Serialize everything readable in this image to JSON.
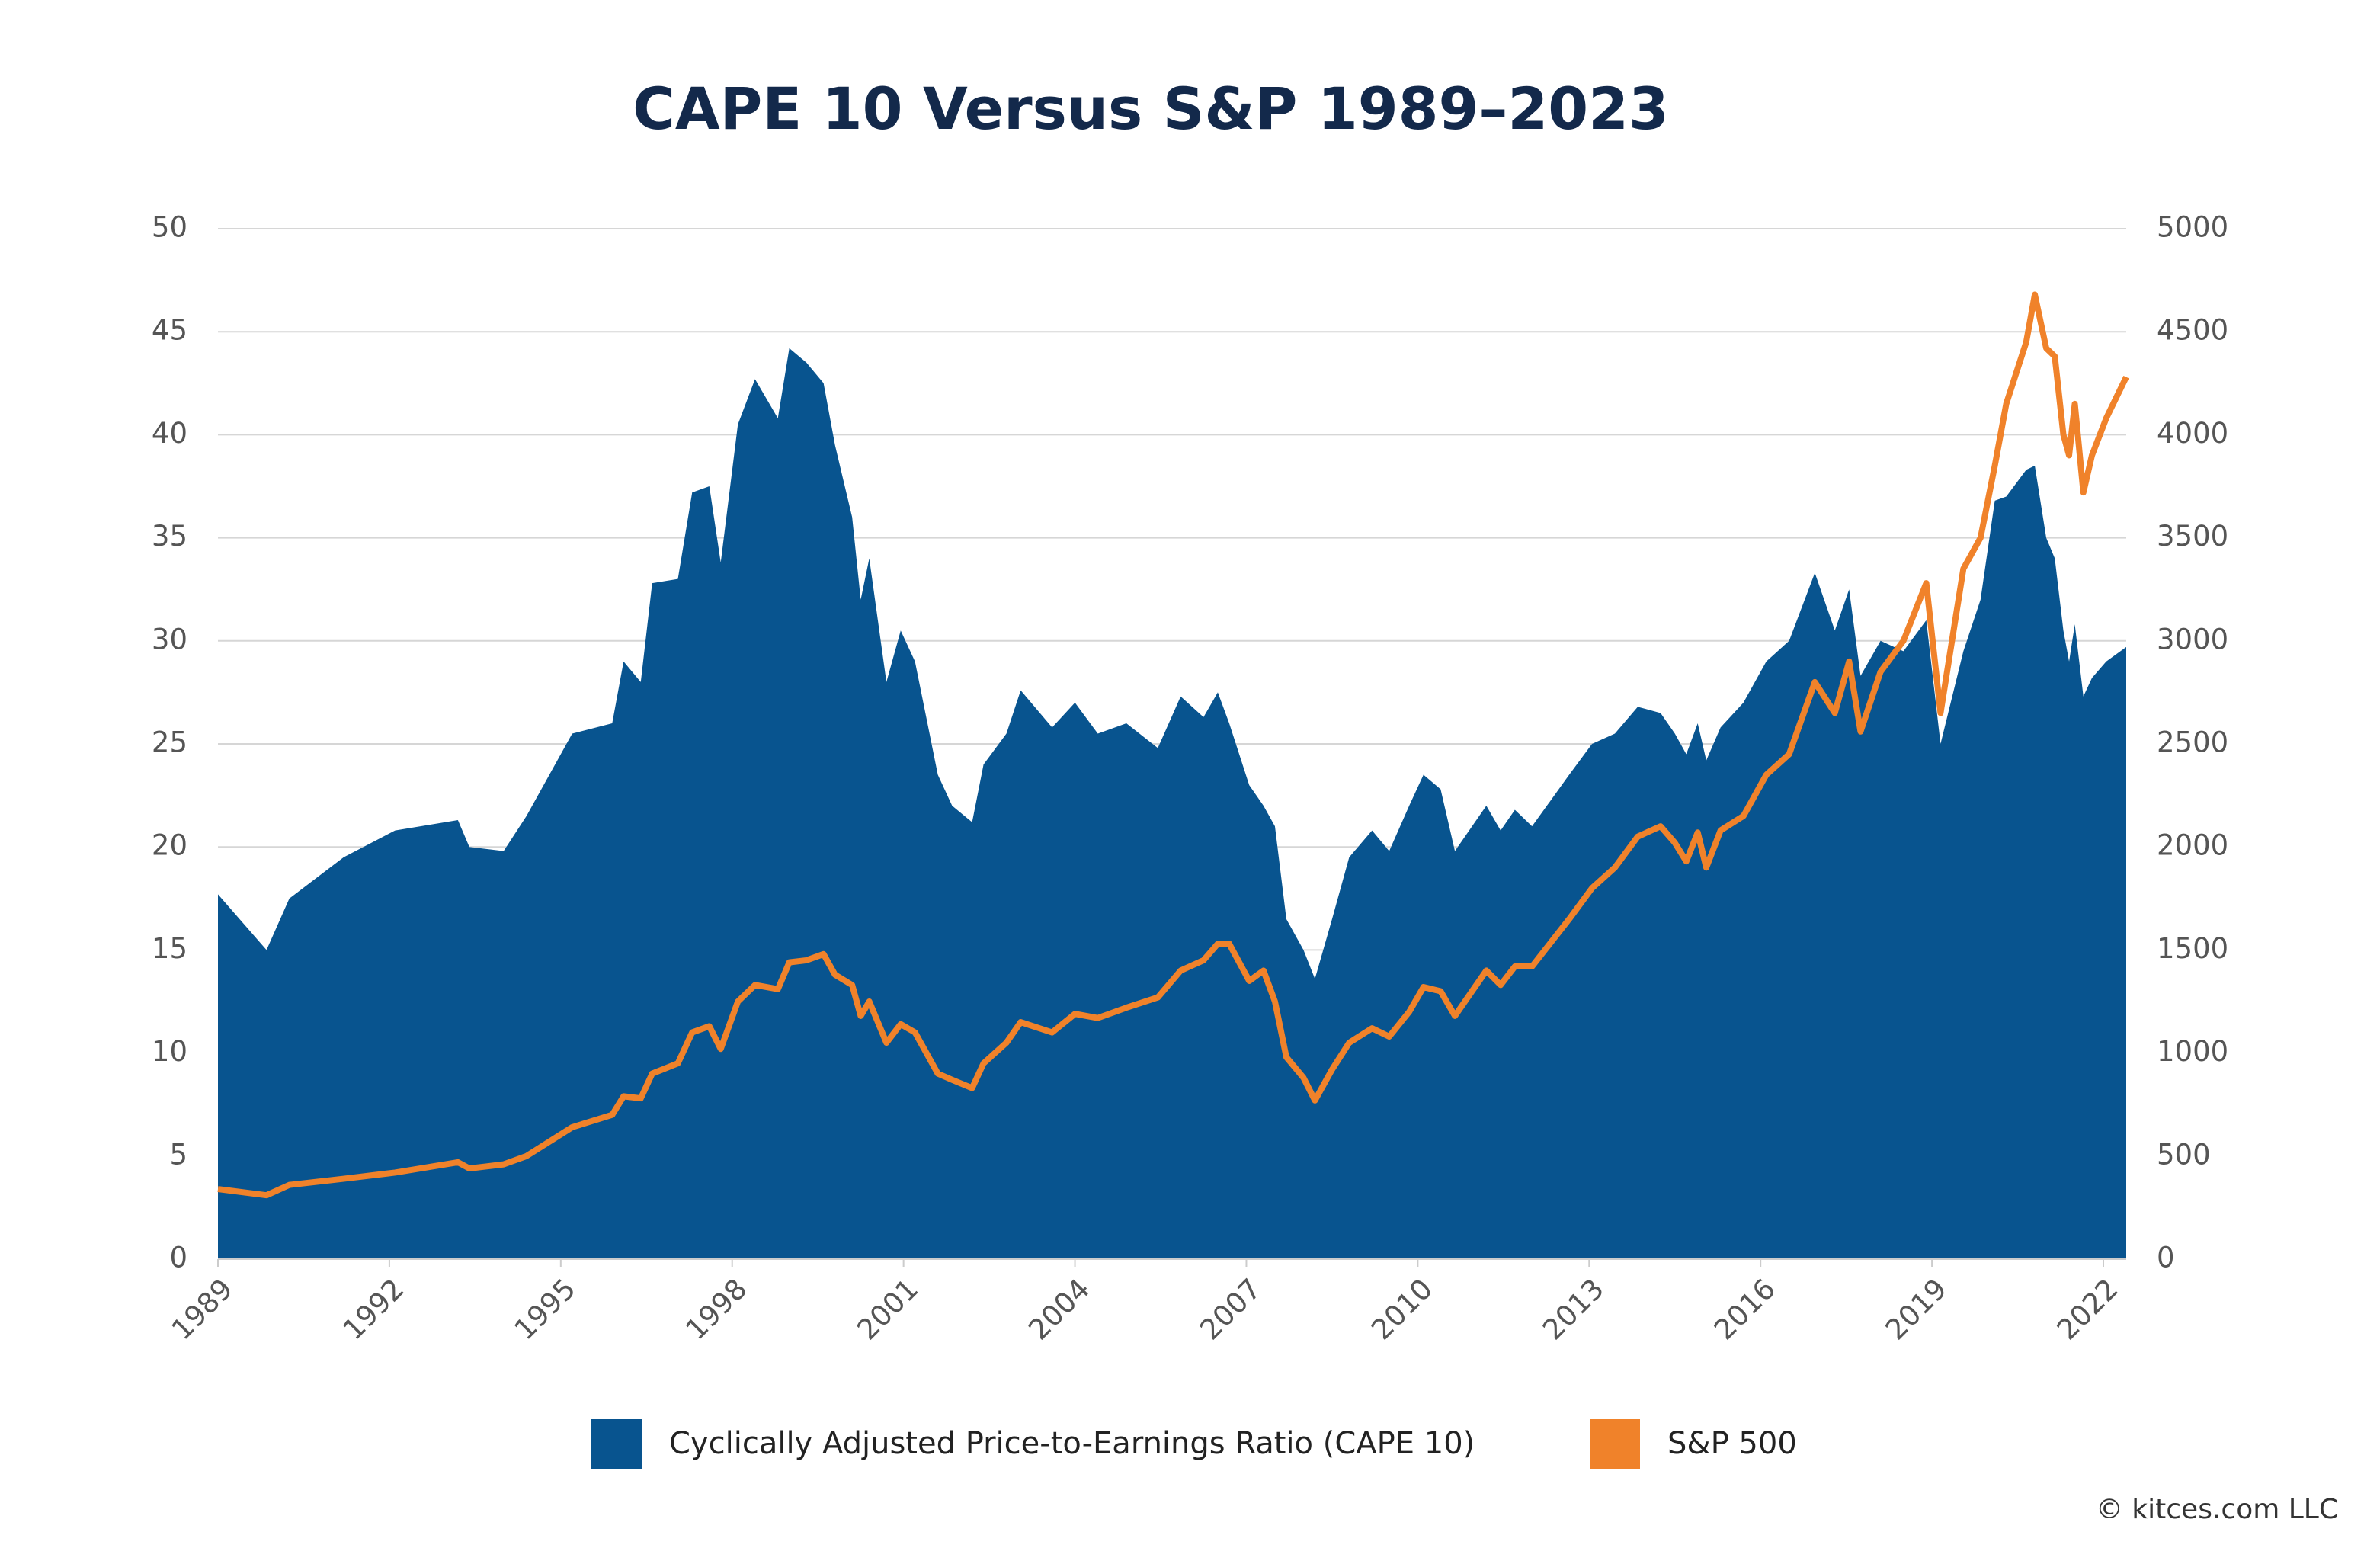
{
  "chart_data": {
    "type": "area",
    "title": "CAPE 10 Versus S&P 1989–2023",
    "credit": "© kitces.com LLC",
    "x": [
      1989.0,
      1989.85,
      1990.25,
      1991.2,
      1992.1,
      1993.2,
      1993.4,
      1994.0,
      1994.4,
      1995.2,
      1995.9,
      1996.1,
      1996.4,
      1996.6,
      1997.05,
      1997.3,
      1997.6,
      1997.8,
      1998.1,
      1998.4,
      1998.8,
      1999.0,
      1999.3,
      1999.6,
      1999.8,
      2000.1,
      2000.25,
      2000.4,
      2000.7,
      2000.95,
      2001.2,
      2001.6,
      2001.85,
      2002.2,
      2002.4,
      2002.8,
      2003.05,
      2003.6,
      2004.0,
      2004.4,
      2004.9,
      2005.45,
      2005.85,
      2006.25,
      2006.5,
      2006.7,
      2007.05,
      2007.3,
      2007.5,
      2007.7,
      2008.0,
      2008.2,
      2008.5,
      2008.8,
      2009.2,
      2009.5,
      2009.85,
      2010.1,
      2010.4,
      2010.65,
      2011.2,
      2011.45,
      2011.7,
      2012.0,
      2012.65,
      2013.05,
      2013.45,
      2013.85,
      2014.25,
      2014.5,
      2014.7,
      2014.9,
      2015.05,
      2015.3,
      2015.7,
      2016.1,
      2016.5,
      2016.95,
      2017.3,
      2017.55,
      2017.75,
      2018.1,
      2018.5,
      2018.9,
      2019.15,
      2019.55,
      2019.85,
      2020.1,
      2020.3,
      2020.65,
      2020.8,
      2021.0,
      2021.15,
      2021.3,
      2021.4,
      2021.5,
      2021.65,
      2021.8,
      2022.05,
      2022.4
    ],
    "series": [
      {
        "name": "Cyclically Adjusted Price-to-Earnings Ratio (CAPE 10)",
        "type": "area",
        "color": "#08548f",
        "values": [
          17.7,
          15.0,
          17.5,
          19.5,
          20.8,
          21.3,
          20.0,
          19.8,
          21.5,
          25.5,
          26.0,
          29.0,
          28.0,
          32.8,
          33.0,
          37.2,
          37.5,
          33.8,
          40.5,
          42.7,
          40.8,
          44.2,
          43.5,
          42.5,
          39.5,
          36.0,
          32.0,
          34.0,
          28.0,
          30.5,
          29.0,
          23.5,
          22.0,
          21.2,
          24.0,
          25.5,
          27.6,
          25.8,
          27.0,
          25.5,
          26.0,
          24.8,
          27.3,
          26.3,
          27.5,
          26.0,
          23.0,
          22.0,
          21.0,
          16.5,
          15.0,
          13.6,
          16.5,
          19.5,
          20.8,
          19.8,
          22.0,
          23.5,
          22.8,
          19.8,
          22.0,
          20.8,
          21.8,
          21.0,
          23.5,
          25.0,
          25.5,
          26.8,
          26.5,
          25.5,
          24.5,
          26.0,
          24.2,
          25.8,
          27.0,
          29.0,
          30.0,
          33.3,
          30.5,
          32.5,
          28.3,
          30.0,
          29.5,
          31.0,
          25.0,
          29.5,
          32.0,
          36.8,
          37.0,
          38.3,
          38.5,
          35.0,
          34.0,
          30.5,
          29.0,
          30.8,
          27.3,
          28.2,
          29.0,
          29.7
        ]
      },
      {
        "name": "S&P 500",
        "type": "line",
        "axis": "y2",
        "color": "#f0822a",
        "values": [
          340,
          310,
          360,
          390,
          420,
          470,
          440,
          460,
          500,
          640,
          700,
          790,
          780,
          900,
          950,
          1100,
          1130,
          1020,
          1250,
          1330,
          1310,
          1440,
          1450,
          1480,
          1380,
          1330,
          1180,
          1250,
          1050,
          1140,
          1100,
          900,
          870,
          830,
          950,
          1050,
          1150,
          1100,
          1190,
          1170,
          1220,
          1270,
          1400,
          1450,
          1530,
          1530,
          1350,
          1400,
          1250,
          980,
          880,
          770,
          920,
          1050,
          1120,
          1080,
          1200,
          1320,
          1300,
          1180,
          1400,
          1330,
          1420,
          1420,
          1650,
          1800,
          1900,
          2050,
          2100,
          2020,
          1930,
          2070,
          1900,
          2080,
          2150,
          2350,
          2450,
          2800,
          2650,
          2900,
          2560,
          2850,
          3000,
          3280,
          2650,
          3350,
          3500,
          3850,
          4150,
          4450,
          4680,
          4420,
          4380,
          4000,
          3900,
          4150,
          3720,
          3900,
          4080,
          4280
        ]
      }
    ],
    "xlim": [
      1989,
      2022.4
    ],
    "xticks": [
      1989,
      1992,
      1995,
      1998,
      2001,
      2004,
      2007,
      2010,
      2013,
      2016,
      2019,
      2022
    ],
    "ylim": [
      0,
      50
    ],
    "yticks": [
      0,
      5,
      10,
      15,
      20,
      25,
      30,
      35,
      40,
      45,
      50
    ],
    "y2lim": [
      0,
      5000
    ],
    "y2ticks": [
      0,
      500,
      1000,
      1500,
      2000,
      2500,
      3000,
      3500,
      4000,
      4500,
      5000
    ],
    "grid": true
  }
}
